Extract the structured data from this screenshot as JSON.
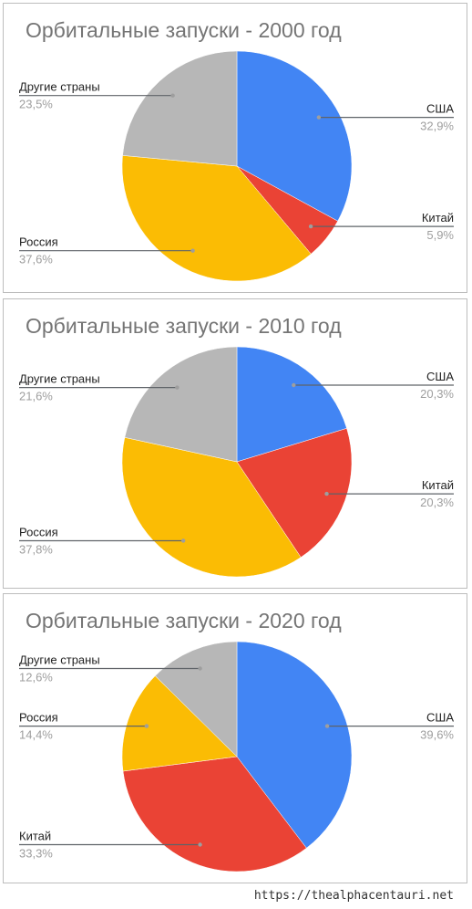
{
  "chart_data": [
    {
      "type": "pie",
      "title": "Орбитальные запуски - 2000 год",
      "slices": [
        {
          "label": "США",
          "value": 32.9,
          "value_label": "32,9%",
          "color": "#4285f4"
        },
        {
          "label": "Китай",
          "value": 5.9,
          "value_label": "5,9%",
          "color": "#ea4335"
        },
        {
          "label": "Россия",
          "value": 37.6,
          "value_label": "37,6%",
          "color": "#fbbc04"
        },
        {
          "label": "Другие страны",
          "value": 23.5,
          "value_label": "23,5%",
          "color": "#b7b7b7"
        }
      ]
    },
    {
      "type": "pie",
      "title": "Орбитальные запуски - 2010 год",
      "slices": [
        {
          "label": "США",
          "value": 20.3,
          "value_label": "20,3%",
          "color": "#4285f4"
        },
        {
          "label": "Китай",
          "value": 20.3,
          "value_label": "20,3%",
          "color": "#ea4335"
        },
        {
          "label": "Россия",
          "value": 37.8,
          "value_label": "37,8%",
          "color": "#fbbc04"
        },
        {
          "label": "Другие страны",
          "value": 21.6,
          "value_label": "21,6%",
          "color": "#b7b7b7"
        }
      ]
    },
    {
      "type": "pie",
      "title": "Орбитальные запуски - 2020 год",
      "slices": [
        {
          "label": "США",
          "value": 39.6,
          "value_label": "39,6%",
          "color": "#4285f4"
        },
        {
          "label": "Китай",
          "value": 33.3,
          "value_label": "33,3%",
          "color": "#ea4335"
        },
        {
          "label": "Россия",
          "value": 14.4,
          "value_label": "14,4%",
          "color": "#fbbc04"
        },
        {
          "label": "Другие страны",
          "value": 12.6,
          "value_label": "12,6%",
          "color": "#b7b7b7"
        }
      ]
    }
  ],
  "footer": "https://thealphacentauri.net"
}
